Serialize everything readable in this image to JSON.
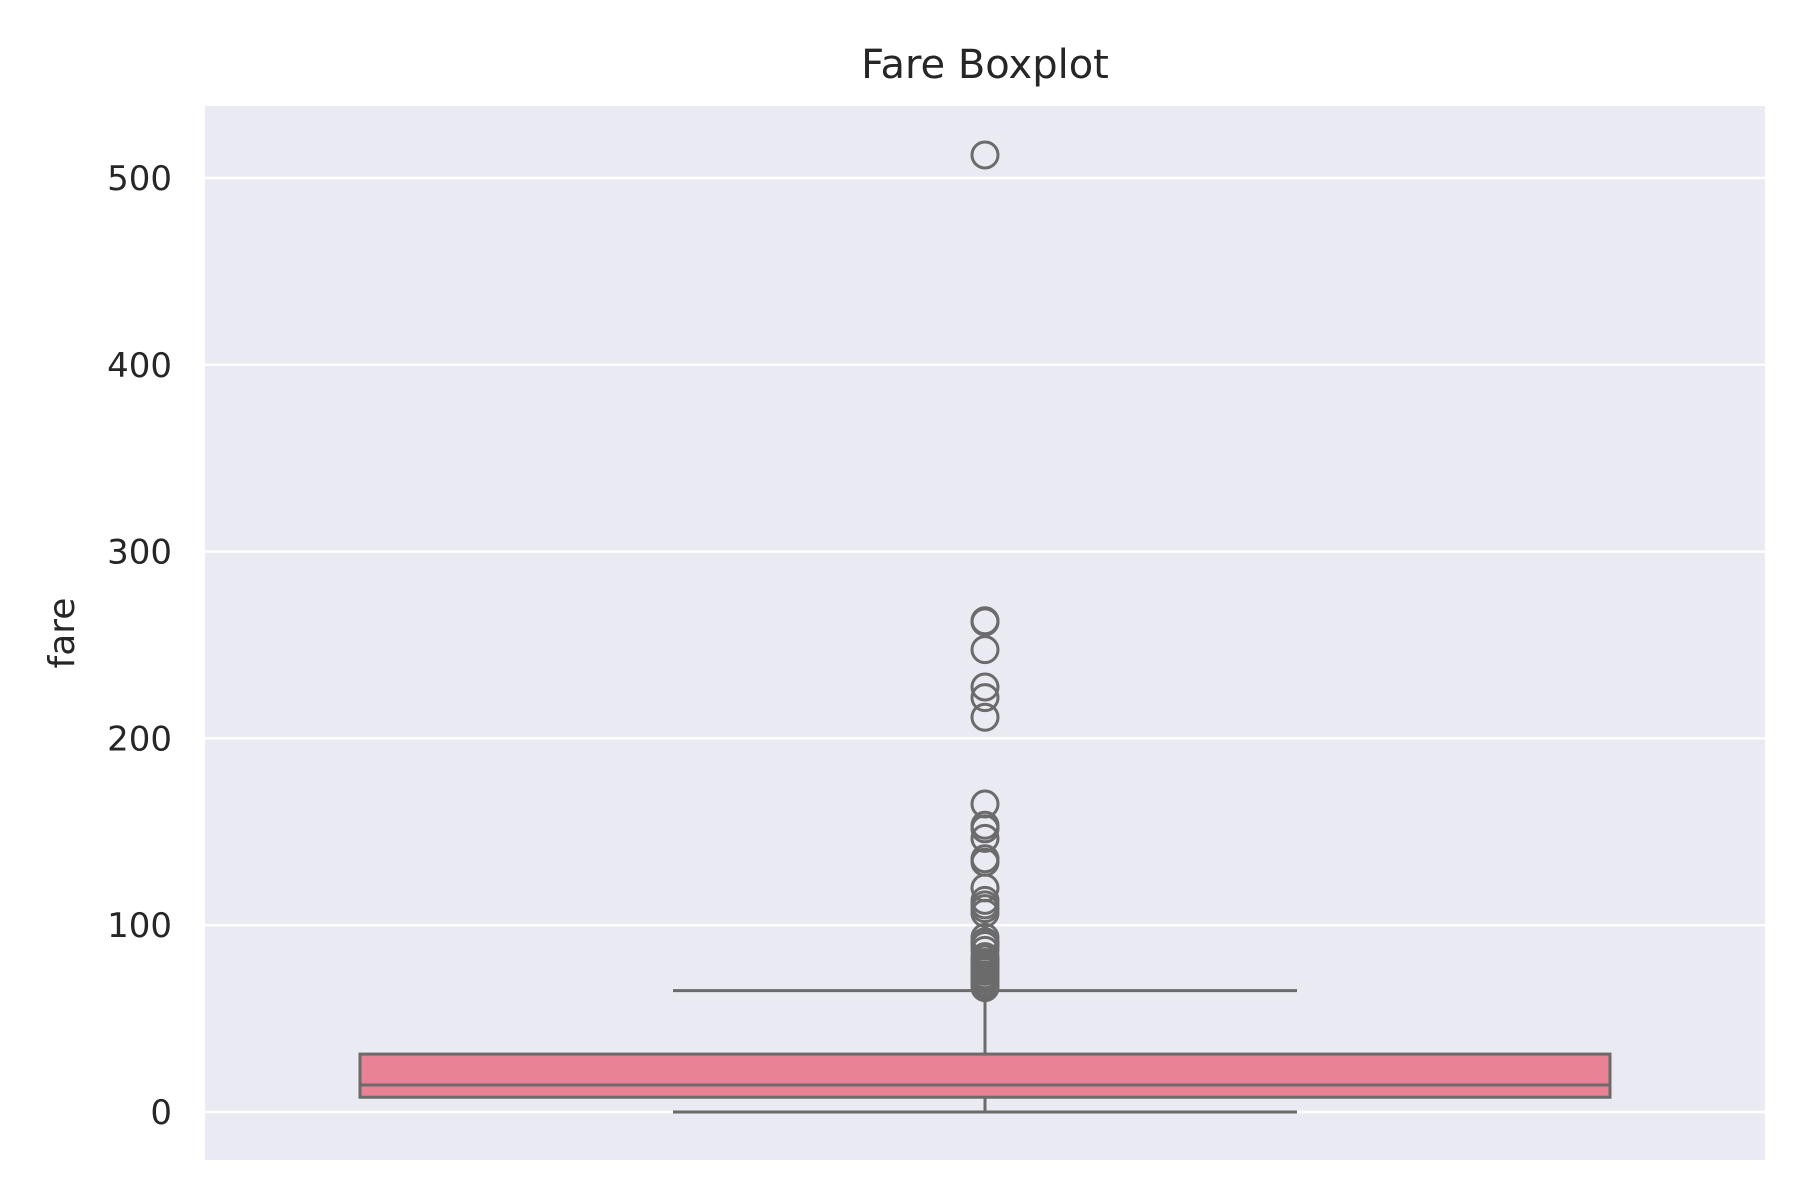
{
  "chart_data": {
    "type": "boxplot",
    "title": "Fare Boxplot",
    "xlabel": "",
    "ylabel": "fare",
    "ylim": [
      -26,
      538
    ],
    "yticks": [
      0,
      100,
      200,
      300,
      400,
      500
    ],
    "grid": true,
    "box": {
      "whisker_low": 0,
      "q1": 7.9,
      "median": 14.45,
      "q3": 31,
      "whisker_high": 65,
      "outliers": [
        66.6,
        68,
        69.3,
        71,
        72.5,
        73.5,
        75.25,
        76.7,
        77.3,
        78.85,
        79.2,
        80,
        81.9,
        83.2,
        86.5,
        89.1,
        90,
        91.1,
        93.5,
        106.4,
        108.9,
        110.9,
        113.3,
        120,
        133.7,
        135.6,
        146.5,
        151.6,
        153.5,
        164.9,
        211.3,
        221.8,
        227.5,
        247.5,
        262.4,
        263,
        512.3
      ]
    }
  },
  "colors": {
    "background": "#eaeaf2",
    "grid": "#ffffff",
    "box_fill": "#e88294",
    "line": "#6b6b6b"
  }
}
